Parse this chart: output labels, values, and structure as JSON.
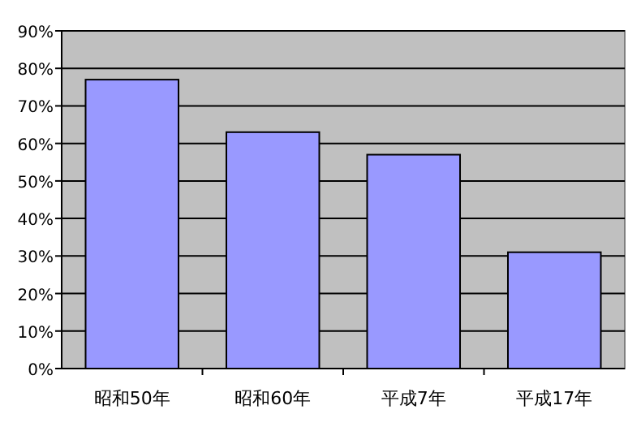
{
  "chart_data": {
    "type": "bar",
    "categories": [
      "昭和50年",
      "昭和60年",
      "平成7年",
      "平成17年"
    ],
    "values": [
      77,
      63,
      57,
      31
    ],
    "color": "#9999ff",
    "ylim": [
      0,
      90
    ],
    "yticks": [
      {
        "value": 0,
        "label": "0%"
      },
      {
        "value": 10,
        "label": "10%"
      },
      {
        "value": 20,
        "label": "20%"
      },
      {
        "value": 30,
        "label": "30%"
      },
      {
        "value": 40,
        "label": "40%"
      },
      {
        "value": 50,
        "label": "50%"
      },
      {
        "value": 60,
        "label": "60%"
      },
      {
        "value": 70,
        "label": "70%"
      },
      {
        "value": 80,
        "label": "80%"
      },
      {
        "value": 90,
        "label": "90%"
      }
    ],
    "grid": "y"
  }
}
